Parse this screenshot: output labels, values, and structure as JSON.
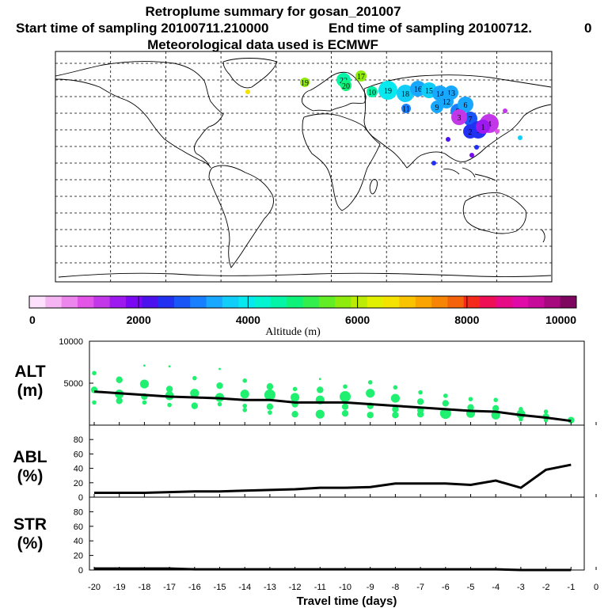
{
  "title": {
    "line1": "Retroplume summary for gosan_201007",
    "line2_start": "Start time of sampling 20100711.210000",
    "line2_end": "End time of sampling 20100712.",
    "line2_trail": "0",
    "line3": "Meteorological data used is ECMWF"
  },
  "map": {
    "bubbles": [
      {
        "label": "19",
        "alt": 5800
      },
      {
        "label": "22",
        "alt": 4600
      },
      {
        "label": "17",
        "alt": 5600
      },
      {
        "label": "20",
        "alt": 4800
      },
      {
        "label": "19",
        "alt": 3900
      },
      {
        "label": "18",
        "alt": 3700
      },
      {
        "label": "16",
        "alt": 3500
      },
      {
        "label": "15",
        "alt": 3600
      },
      {
        "label": "14",
        "alt": 3400
      },
      {
        "label": "13",
        "alt": 3500
      },
      {
        "label": "12",
        "alt": 3300
      },
      {
        "label": "11",
        "alt": 3200
      },
      {
        "label": "10",
        "alt": 4700
      },
      {
        "label": "9",
        "alt": 3300
      },
      {
        "label": "8",
        "alt": 3000
      },
      {
        "label": "7",
        "alt": 2700
      },
      {
        "label": "6",
        "alt": 3300
      },
      {
        "label": "5",
        "alt": 2600
      },
      {
        "label": "4",
        "alt": 1400
      },
      {
        "label": "3",
        "alt": 1300
      },
      {
        "label": "2",
        "alt": 2400
      },
      {
        "label": "1",
        "alt": 1600
      }
    ]
  },
  "colorbar": {
    "ticks": [
      "0",
      "2000",
      "4000",
      "6000",
      "8000",
      "10000"
    ],
    "label": "Altitude (m)",
    "colors": [
      "#fde0fb",
      "#f5b5f3",
      "#ec85ec",
      "#e255e6",
      "#c238e8",
      "#9e19ef",
      "#7a08f2",
      "#4b12ee",
      "#2230f2",
      "#1956f8",
      "#1880ff",
      "#18a8ff",
      "#11cef9",
      "#07e8ef",
      "#04f4d2",
      "#05f5a8",
      "#0ef27a",
      "#33ef4e",
      "#62ed24",
      "#8feb0c",
      "#bcec05",
      "#e1ef00",
      "#f4e200",
      "#f9c300",
      "#f9a400",
      "#f78505",
      "#f5620c",
      "#f42a1a",
      "#ed0e55",
      "#e60a86",
      "#df0aa8",
      "#c80a9a",
      "#a6087e",
      "#7e065e"
    ]
  },
  "chart_data": [
    {
      "type": "scatter",
      "panel_label": "ALT",
      "panel_unit": "(m)",
      "ylim": [
        0,
        10000
      ],
      "yticks": [
        "5000",
        "10000"
      ],
      "x": [
        -20,
        -19,
        -18,
        -17,
        -16,
        -15,
        -14,
        -13,
        -12,
        -11,
        -10,
        -9,
        -8,
        -7,
        -6,
        -5,
        -4,
        -3,
        -2,
        -1
      ],
      "series": [
        {
          "name": "mean altitude",
          "values": [
            4000,
            3800,
            3600,
            3400,
            3300,
            3200,
            3000,
            3000,
            2700,
            2700,
            2700,
            2500,
            2300,
            2100,
            1900,
            1700,
            1600,
            1200,
            900,
            500
          ]
        }
      ],
      "points": [
        {
          "x": -20,
          "y": 6200,
          "s": 2
        },
        {
          "x": -20,
          "y": 4200,
          "s": 3
        },
        {
          "x": -20,
          "y": 2700,
          "s": 2
        },
        {
          "x": -19,
          "y": 5400,
          "s": 3
        },
        {
          "x": -19,
          "y": 3700,
          "s": 4
        },
        {
          "x": -19,
          "y": 2900,
          "s": 3
        },
        {
          "x": -18,
          "y": 7100,
          "s": 1
        },
        {
          "x": -18,
          "y": 4900,
          "s": 4
        },
        {
          "x": -18,
          "y": 3400,
          "s": 3
        },
        {
          "x": -18,
          "y": 2700,
          "s": 2
        },
        {
          "x": -17,
          "y": 7000,
          "s": 1
        },
        {
          "x": -17,
          "y": 4300,
          "s": 3
        },
        {
          "x": -17,
          "y": 3500,
          "s": 4
        },
        {
          "x": -17,
          "y": 2400,
          "s": 2
        },
        {
          "x": -16,
          "y": 5600,
          "s": 2
        },
        {
          "x": -16,
          "y": 3800,
          "s": 4
        },
        {
          "x": -16,
          "y": 2300,
          "s": 3
        },
        {
          "x": -15,
          "y": 6700,
          "s": 1
        },
        {
          "x": -15,
          "y": 4700,
          "s": 3
        },
        {
          "x": -15,
          "y": 3300,
          "s": 4
        },
        {
          "x": -15,
          "y": 2500,
          "s": 2
        },
        {
          "x": -14,
          "y": 5300,
          "s": 2
        },
        {
          "x": -14,
          "y": 3700,
          "s": 4
        },
        {
          "x": -14,
          "y": 2300,
          "s": 2
        },
        {
          "x": -14,
          "y": 1800,
          "s": 2
        },
        {
          "x": -13,
          "y": 4600,
          "s": 3
        },
        {
          "x": -13,
          "y": 3600,
          "s": 5
        },
        {
          "x": -13,
          "y": 2200,
          "s": 3
        },
        {
          "x": -13,
          "y": 1500,
          "s": 2
        },
        {
          "x": -12,
          "y": 4300,
          "s": 2
        },
        {
          "x": -12,
          "y": 3300,
          "s": 4
        },
        {
          "x": -12,
          "y": 2500,
          "s": 3
        },
        {
          "x": -12,
          "y": 1300,
          "s": 3
        },
        {
          "x": -11,
          "y": 5500,
          "s": 1
        },
        {
          "x": -11,
          "y": 4200,
          "s": 3
        },
        {
          "x": -11,
          "y": 3000,
          "s": 4
        },
        {
          "x": -11,
          "y": 1300,
          "s": 4
        },
        {
          "x": -10,
          "y": 4600,
          "s": 2
        },
        {
          "x": -10,
          "y": 3400,
          "s": 5
        },
        {
          "x": -10,
          "y": 2200,
          "s": 3
        },
        {
          "x": -10,
          "y": 1400,
          "s": 3
        },
        {
          "x": -9,
          "y": 5100,
          "s": 2
        },
        {
          "x": -9,
          "y": 3800,
          "s": 4
        },
        {
          "x": -9,
          "y": 2300,
          "s": 3
        },
        {
          "x": -9,
          "y": 1200,
          "s": 3
        },
        {
          "x": -8,
          "y": 4500,
          "s": 2
        },
        {
          "x": -8,
          "y": 3200,
          "s": 4
        },
        {
          "x": -8,
          "y": 1900,
          "s": 3
        },
        {
          "x": -8,
          "y": 1200,
          "s": 3
        },
        {
          "x": -7,
          "y": 3900,
          "s": 2
        },
        {
          "x": -7,
          "y": 2800,
          "s": 3
        },
        {
          "x": -7,
          "y": 1800,
          "s": 3
        },
        {
          "x": -7,
          "y": 1300,
          "s": 3
        },
        {
          "x": -6,
          "y": 3500,
          "s": 2
        },
        {
          "x": -6,
          "y": 2600,
          "s": 3
        },
        {
          "x": -6,
          "y": 1400,
          "s": 5
        },
        {
          "x": -5,
          "y": 3100,
          "s": 2
        },
        {
          "x": -5,
          "y": 2100,
          "s": 3
        },
        {
          "x": -5,
          "y": 1400,
          "s": 4
        },
        {
          "x": -4,
          "y": 3000,
          "s": 2
        },
        {
          "x": -4,
          "y": 2000,
          "s": 3
        },
        {
          "x": -4,
          "y": 1200,
          "s": 4
        },
        {
          "x": -3,
          "y": 1900,
          "s": 2
        },
        {
          "x": -3,
          "y": 1300,
          "s": 4
        },
        {
          "x": -3,
          "y": 700,
          "s": 2
        },
        {
          "x": -2,
          "y": 1600,
          "s": 2
        },
        {
          "x": -2,
          "y": 1000,
          "s": 3
        },
        {
          "x": -2,
          "y": 600,
          "s": 2
        },
        {
          "x": -1,
          "y": 600,
          "s": 3
        }
      ]
    },
    {
      "type": "line",
      "panel_label": "ABL",
      "panel_unit": "(%)",
      "ylim": [
        0,
        100
      ],
      "yticks": [
        "0",
        "20",
        "40",
        "60",
        "80"
      ],
      "x": [
        -20,
        -19,
        -18,
        -17,
        -16,
        -15,
        -14,
        -13,
        -12,
        -11,
        -10,
        -9,
        -8,
        -7,
        -6,
        -5,
        -4,
        -3,
        -2,
        -1
      ],
      "series": [
        {
          "name": "ABL",
          "values": [
            6,
            6,
            6,
            7,
            8,
            8,
            9,
            10,
            11,
            13,
            13,
            14,
            19,
            19,
            19,
            17,
            23,
            13,
            38,
            45
          ]
        }
      ]
    },
    {
      "type": "line",
      "panel_label": "STR",
      "panel_unit": "(%)",
      "ylim": [
        0,
        100
      ],
      "yticks": [
        "0",
        "20",
        "40",
        "60",
        "80"
      ],
      "x": [
        -20,
        -19,
        -18,
        -17,
        -16,
        -15,
        -14,
        -13,
        -12,
        -11,
        -10,
        -9,
        -8,
        -7,
        -6,
        -5,
        -4,
        -3,
        -2,
        -1
      ],
      "series": [
        {
          "name": "STR",
          "values": [
            2,
            2,
            2,
            2,
            1,
            1,
            1,
            1,
            1,
            1,
            1,
            1,
            1,
            1,
            1,
            1,
            1,
            0,
            0,
            0
          ]
        }
      ]
    }
  ],
  "xaxis": {
    "ticks": [
      "-20",
      "-19",
      "-18",
      "-17",
      "-16",
      "-15",
      "-14",
      "-13",
      "-12",
      "-11",
      "-10",
      "-9",
      "-8",
      "-7",
      "-6",
      "-5",
      "-4",
      "-3",
      "-2",
      "-1",
      "0"
    ],
    "label": "Travel time (days)"
  },
  "colors": {
    "bubble": "#20f070",
    "line": "#000000"
  }
}
